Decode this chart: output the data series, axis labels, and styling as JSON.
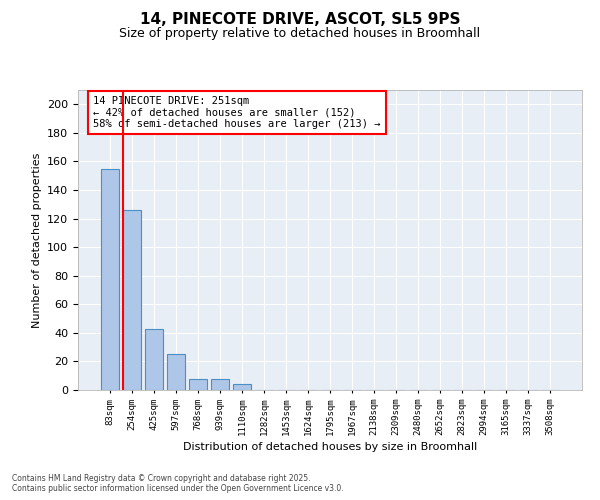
{
  "title": "14, PINECOTE DRIVE, ASCOT, SL5 9PS",
  "subtitle": "Size of property relative to detached houses in Broomhall",
  "xlabel": "Distribution of detached houses by size in Broomhall",
  "ylabel": "Number of detached properties",
  "bar_color": "#aec6e8",
  "bar_edge_color": "#4a90c4",
  "background_color": "#e8eef5",
  "grid_color": "white",
  "categories": [
    "83sqm",
    "254sqm",
    "425sqm",
    "597sqm",
    "768sqm",
    "939sqm",
    "1110sqm",
    "1282sqm",
    "1453sqm",
    "1624sqm",
    "1795sqm",
    "1967sqm",
    "2138sqm",
    "2309sqm",
    "2480sqm",
    "2652sqm",
    "2823sqm",
    "2994sqm",
    "3165sqm",
    "3337sqm",
    "3508sqm"
  ],
  "values": [
    155,
    126,
    43,
    25,
    8,
    8,
    4,
    0,
    0,
    0,
    0,
    0,
    0,
    0,
    0,
    0,
    0,
    0,
    0,
    0,
    0
  ],
  "vline_index": 1,
  "vline_color": "red",
  "annotation_line1": "14 PINECOTE DRIVE: 251sqm",
  "annotation_line2": "← 42% of detached houses are smaller (152)",
  "annotation_line3": "58% of semi-detached houses are larger (213) →",
  "ylim_max": 210,
  "yticks": [
    0,
    20,
    40,
    60,
    80,
    100,
    120,
    140,
    160,
    180,
    200
  ],
  "footer1": "Contains HM Land Registry data © Crown copyright and database right 2025.",
  "footer2": "Contains public sector information licensed under the Open Government Licence v3.0."
}
